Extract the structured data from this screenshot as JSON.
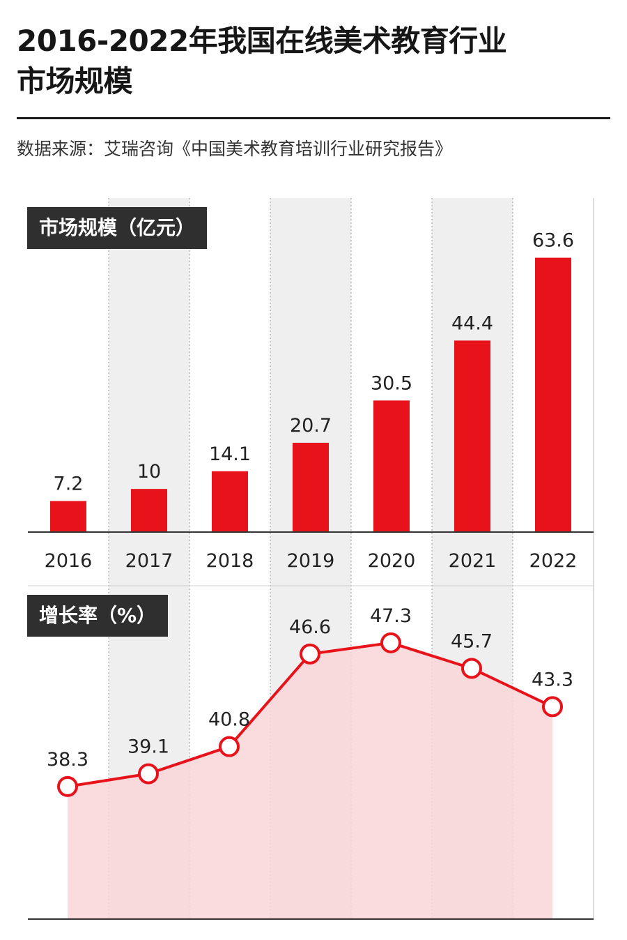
{
  "header": {
    "title_line1": "2016-2022年我国在线美术教育行业",
    "title_line2": "市场规模",
    "source": "数据来源：艾瑞咨询《中国美术教育培训行业研究报告》"
  },
  "colors": {
    "bar": "#e8121b",
    "line": "#e8121b",
    "area": "#f9d6d8",
    "shade": "#efefef",
    "label_bg": "#2f2f2f"
  },
  "chart_data": [
    {
      "type": "bar",
      "title": "市场规模（亿元）",
      "categories": [
        "2016",
        "2017",
        "2018",
        "2019",
        "2020",
        "2021",
        "2022"
      ],
      "values": [
        7.2,
        10,
        14.1,
        20.7,
        30.5,
        44.4,
        63.6
      ],
      "value_labels": [
        "7.2",
        "10",
        "14.1",
        "20.7",
        "30.5",
        "44.4",
        "63.6"
      ],
      "ylim": [
        0,
        70
      ],
      "grid": false,
      "shaded_columns": [
        "2017",
        "2019",
        "2021"
      ]
    },
    {
      "type": "area",
      "title": "增长率（%）",
      "categories": [
        "2016",
        "2017",
        "2018",
        "2019",
        "2020",
        "2021",
        "2022"
      ],
      "values": [
        38.3,
        39.1,
        40.8,
        46.6,
        47.3,
        45.7,
        43.3
      ],
      "value_labels": [
        "38.3",
        "39.1",
        "40.8",
        "46.6",
        "47.3",
        "45.7",
        "43.3"
      ],
      "ylim": [
        30,
        50
      ],
      "grid": false,
      "shaded_columns": [
        "2017",
        "2019",
        "2021"
      ]
    }
  ]
}
